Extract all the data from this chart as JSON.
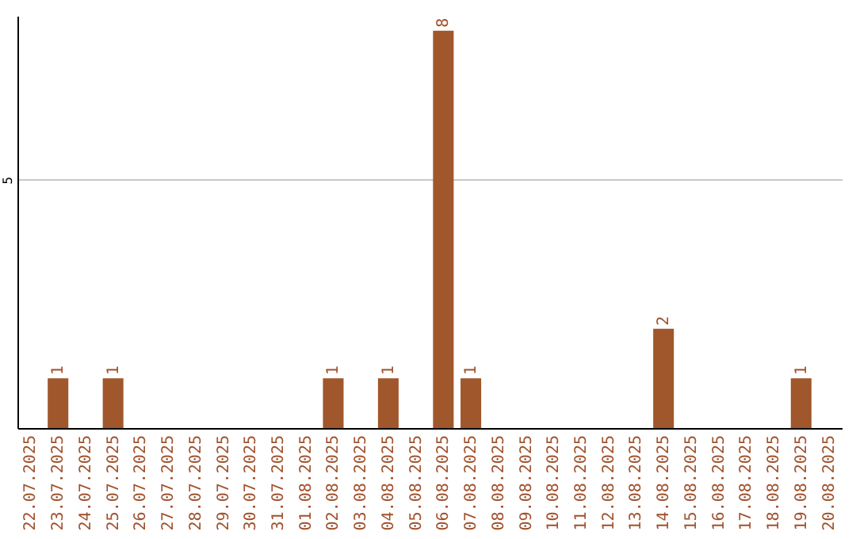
{
  "chart_data": {
    "type": "bar",
    "categories": [
      "22.07.2025",
      "23.07.2025",
      "24.07.2025",
      "25.07.2025",
      "26.07.2025",
      "27.07.2025",
      "28.07.2025",
      "29.07.2025",
      "30.07.2025",
      "31.07.2025",
      "01.08.2025",
      "02.08.2025",
      "03.08.2025",
      "04.08.2025",
      "05.08.2025",
      "06.08.2025",
      "07.08.2025",
      "08.08.2025",
      "09.08.2025",
      "10.08.2025",
      "11.08.2025",
      "12.08.2025",
      "13.08.2025",
      "14.08.2025",
      "15.08.2025",
      "16.08.2025",
      "17.08.2025",
      "18.08.2025",
      "19.08.2025",
      "20.08.2025"
    ],
    "values": [
      0,
      1,
      0,
      1,
      0,
      0,
      0,
      0,
      0,
      0,
      0,
      1,
      0,
      1,
      0,
      8,
      1,
      0,
      0,
      0,
      0,
      0,
      0,
      2,
      0,
      0,
      0,
      0,
      1,
      0
    ],
    "value_labels": [
      null,
      "1",
      null,
      "1",
      null,
      null,
      null,
      null,
      null,
      null,
      null,
      "1",
      null,
      "1",
      null,
      "8",
      "1",
      null,
      null,
      null,
      null,
      null,
      null,
      "2",
      null,
      null,
      null,
      null,
      "1",
      null
    ],
    "color": "#a0572b",
    "ylim": [
      0,
      8.3
    ],
    "yticks": [
      5
    ],
    "grid": "y"
  }
}
